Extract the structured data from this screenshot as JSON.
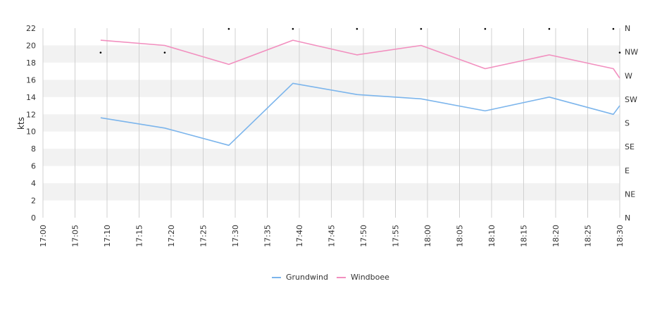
{
  "chart_data": {
    "type": "line",
    "ylabel": "kts",
    "ylim": [
      0,
      22
    ],
    "yticks": [
      "0",
      "2",
      "4",
      "6",
      "8",
      "10",
      "12",
      "14",
      "16",
      "18",
      "20",
      "22"
    ],
    "xticks": [
      "17:00",
      "17:05",
      "17:10",
      "17:15",
      "17:20",
      "17:25",
      "17:30",
      "17:35",
      "17:40",
      "17:45",
      "17:50",
      "17:55",
      "18:00",
      "18:05",
      "18:10",
      "18:15",
      "18:20",
      "18:25",
      "18:30"
    ],
    "direction_axis": [
      "N",
      "NE",
      "E",
      "SE",
      "S",
      "SW",
      "W",
      "NW",
      "N"
    ],
    "grid": true,
    "legend_position": "bottom",
    "colors": {
      "grundwind": "#7cb5ec",
      "windboee": "#f28fbf",
      "band": "#f2f2f2",
      "grid": "#d0d0d0"
    },
    "series": [
      {
        "name": "Grundwind",
        "x": [
          "17:09",
          "17:19",
          "17:29",
          "17:39",
          "17:49",
          "17:59",
          "18:09",
          "18:19",
          "18:29",
          "18:30"
        ],
        "values": [
          11.6,
          10.4,
          8.4,
          15.6,
          14.3,
          13.8,
          12.4,
          14.0,
          12.0,
          13.0
        ]
      },
      {
        "name": "Windboee",
        "x": [
          "17:09",
          "17:19",
          "17:29",
          "17:39",
          "17:49",
          "17:59",
          "18:09",
          "18:19",
          "18:29",
          "18:30"
        ],
        "values": [
          20.6,
          20.0,
          17.8,
          20.6,
          18.9,
          20.0,
          17.3,
          18.9,
          17.3,
          16.2
        ]
      }
    ],
    "direction_markers": {
      "x": [
        "17:09",
        "17:19",
        "17:29",
        "17:39",
        "17:49",
        "17:59",
        "18:09",
        "18:19",
        "18:29",
        "18:30"
      ],
      "directions": [
        "NW",
        "NW",
        "N",
        "N",
        "N",
        "N",
        "N",
        "N",
        "N",
        "NW"
      ]
    }
  }
}
